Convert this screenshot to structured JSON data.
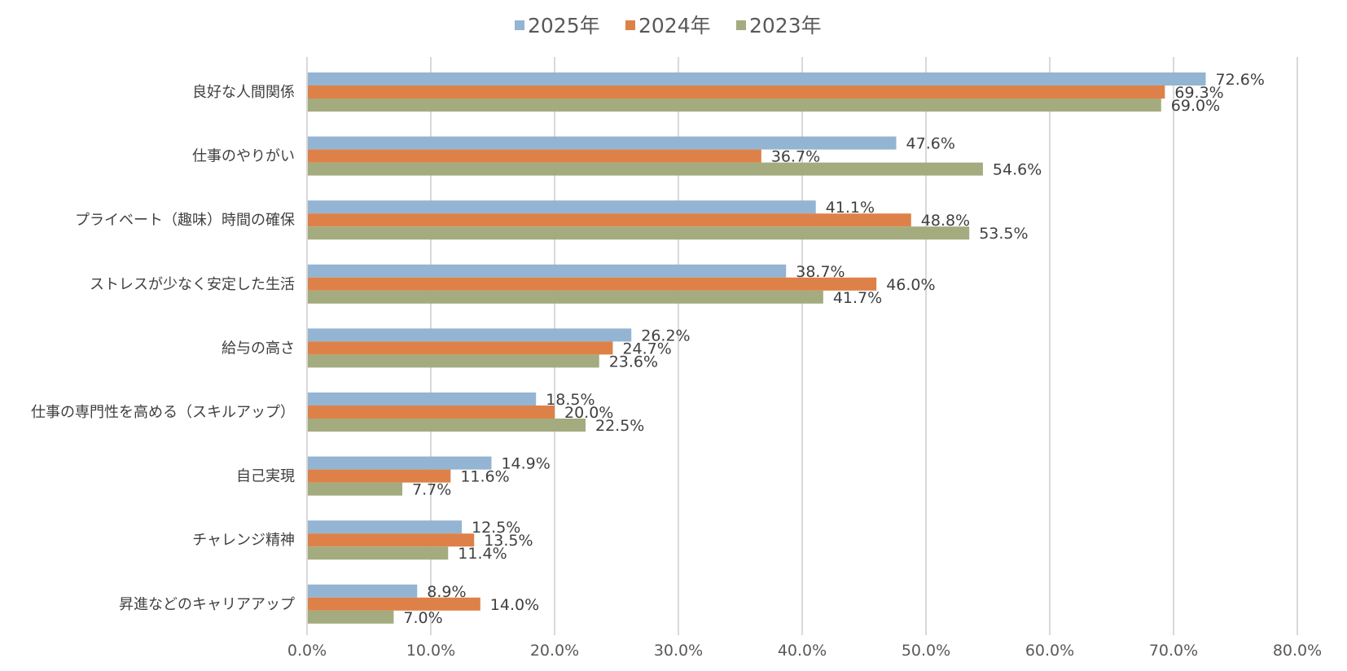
{
  "chart_data": {
    "type": "bar",
    "orientation": "horizontal",
    "title": "",
    "xlabel": "",
    "ylabel": "",
    "xlim": [
      0,
      80
    ],
    "x_ticks": [
      "0.0%",
      "10.0%",
      "20.0%",
      "30.0%",
      "40.0%",
      "50.0%",
      "60.0%",
      "70.0%",
      "80.0%"
    ],
    "x_tick_values": [
      0,
      10,
      20,
      30,
      40,
      50,
      60,
      70,
      80
    ],
    "grid": true,
    "legend_position": "top-center",
    "value_format": "percent-1dp",
    "categories": [
      "良好な人間関係",
      "仕事のやりがい",
      "プライベート（趣味）時間の確保",
      "ストレスが少なく安定した生活",
      "給与の高さ",
      "仕事の専門性を高める（スキルアップ）",
      "自己実現",
      "チャレンジ精神",
      "昇進などのキャリアアップ"
    ],
    "series": [
      {
        "name": "2025年",
        "color": "#93b4d3",
        "values": [
          72.6,
          47.6,
          41.1,
          38.7,
          26.2,
          18.5,
          14.9,
          12.5,
          8.9
        ]
      },
      {
        "name": "2024年",
        "color": "#de8148",
        "values": [
          69.3,
          36.7,
          48.8,
          46.0,
          24.7,
          20.0,
          11.6,
          13.5,
          14.0
        ]
      },
      {
        "name": "2023年",
        "color": "#a4ab7f",
        "values": [
          69.0,
          54.6,
          53.5,
          41.7,
          23.6,
          22.5,
          7.7,
          11.4,
          7.0
        ]
      }
    ]
  }
}
